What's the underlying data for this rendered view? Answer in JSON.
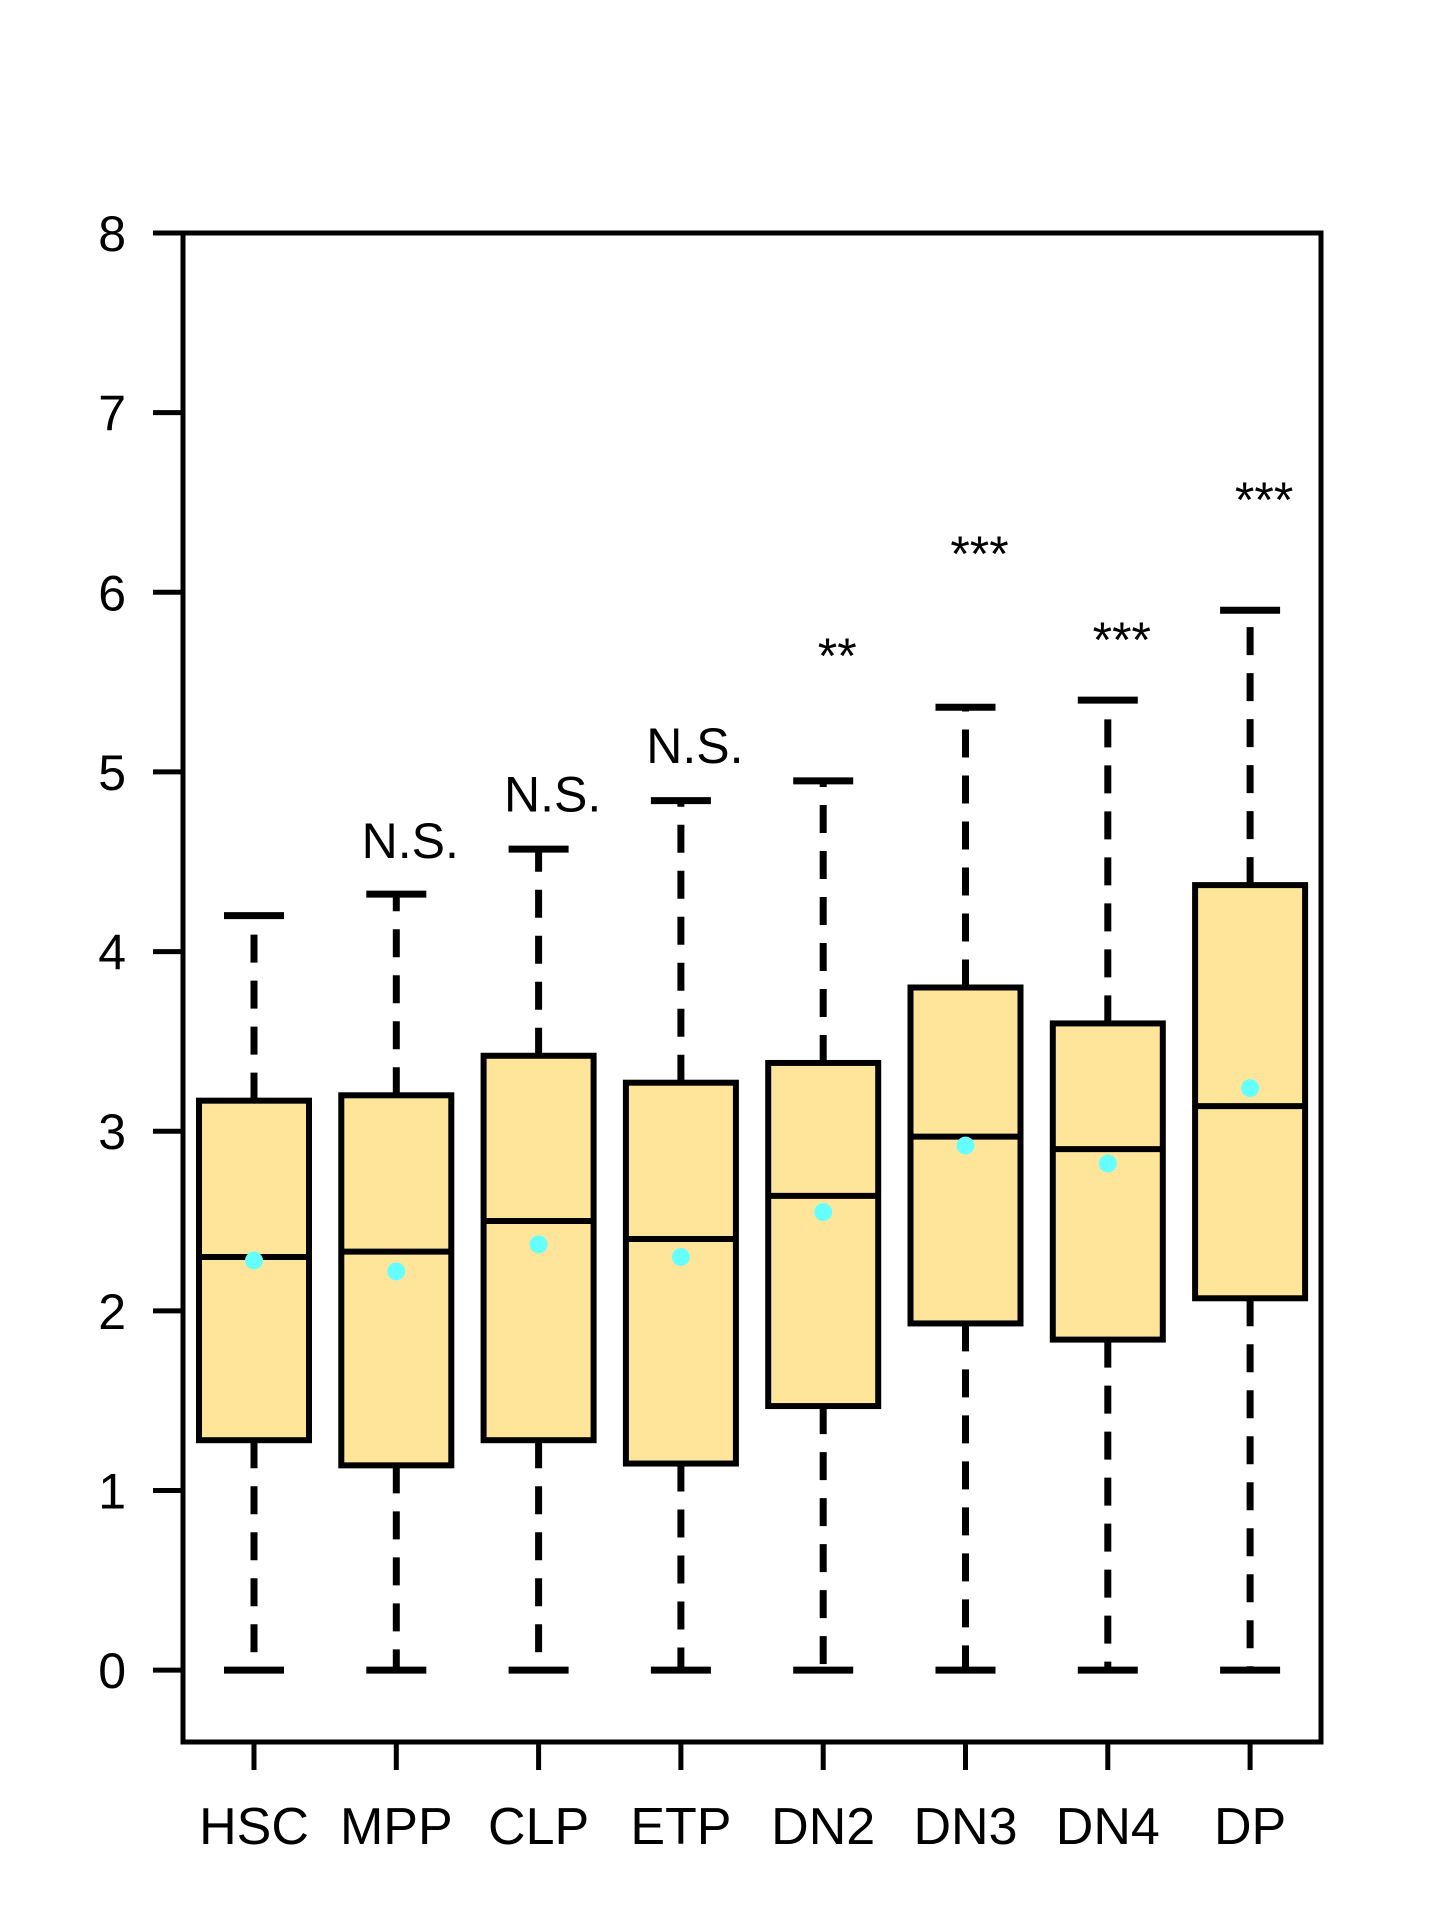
{
  "chart_data": {
    "type": "box",
    "categories": [
      "HSC",
      "MPP",
      "CLP",
      "ETP",
      "DN2",
      "DN3",
      "DN4",
      "DP"
    ],
    "series": [
      {
        "boxes": [
          {
            "whisker_low": 0,
            "q1": 1.28,
            "median": 2.3,
            "q3": 3.17,
            "whisker_high": 4.2,
            "mean": 2.28
          },
          {
            "whisker_low": 0,
            "q1": 1.14,
            "median": 2.33,
            "q3": 3.2,
            "whisker_high": 4.32,
            "mean": 2.22
          },
          {
            "whisker_low": 0,
            "q1": 1.28,
            "median": 2.5,
            "q3": 3.42,
            "whisker_high": 4.57,
            "mean": 2.37
          },
          {
            "whisker_low": 0,
            "q1": 1.15,
            "median": 2.4,
            "q3": 3.27,
            "whisker_high": 4.84,
            "mean": 2.3
          },
          {
            "whisker_low": 0,
            "q1": 1.47,
            "median": 2.64,
            "q3": 3.38,
            "whisker_high": 4.95,
            "mean": 2.55
          },
          {
            "whisker_low": 0,
            "q1": 1.93,
            "median": 2.97,
            "q3": 3.8,
            "whisker_high": 5.36,
            "mean": 2.92
          },
          {
            "whisker_low": 0,
            "q1": 1.84,
            "median": 2.9,
            "q3": 3.6,
            "whisker_high": 5.4,
            "mean": 2.82
          },
          {
            "whisker_low": 0,
            "q1": 2.07,
            "median": 3.14,
            "q3": 4.37,
            "whisker_high": 5.9,
            "mean": 3.24
          }
        ]
      }
    ],
    "annotations": [
      {
        "category": "MPP",
        "text": "N.S.",
        "y": 4.62
      },
      {
        "category": "CLP",
        "text": "N.S.",
        "y": 4.88
      },
      {
        "category": "ETP",
        "text": "N.S.",
        "y": 5.15
      },
      {
        "category": "DN2",
        "text": "**",
        "y": 5.65
      },
      {
        "category": "DN3",
        "text": "***",
        "y": 6.22
      },
      {
        "category": "DN4",
        "text": "***",
        "y": 5.74
      },
      {
        "category": "DP",
        "text": "***",
        "y": 6.52
      }
    ],
    "yticks": [
      "0",
      "1",
      "2",
      "3",
      "4",
      "5",
      "6",
      "7",
      "8"
    ],
    "ylim": [
      -0.4,
      8
    ],
    "title": "",
    "xlabel": "",
    "ylabel": "",
    "grid": false,
    "colors": {
      "box_fill": "#FFE599",
      "box_edge": "#000000",
      "mean_marker": "#66FFFF",
      "axis": "#000000"
    }
  }
}
